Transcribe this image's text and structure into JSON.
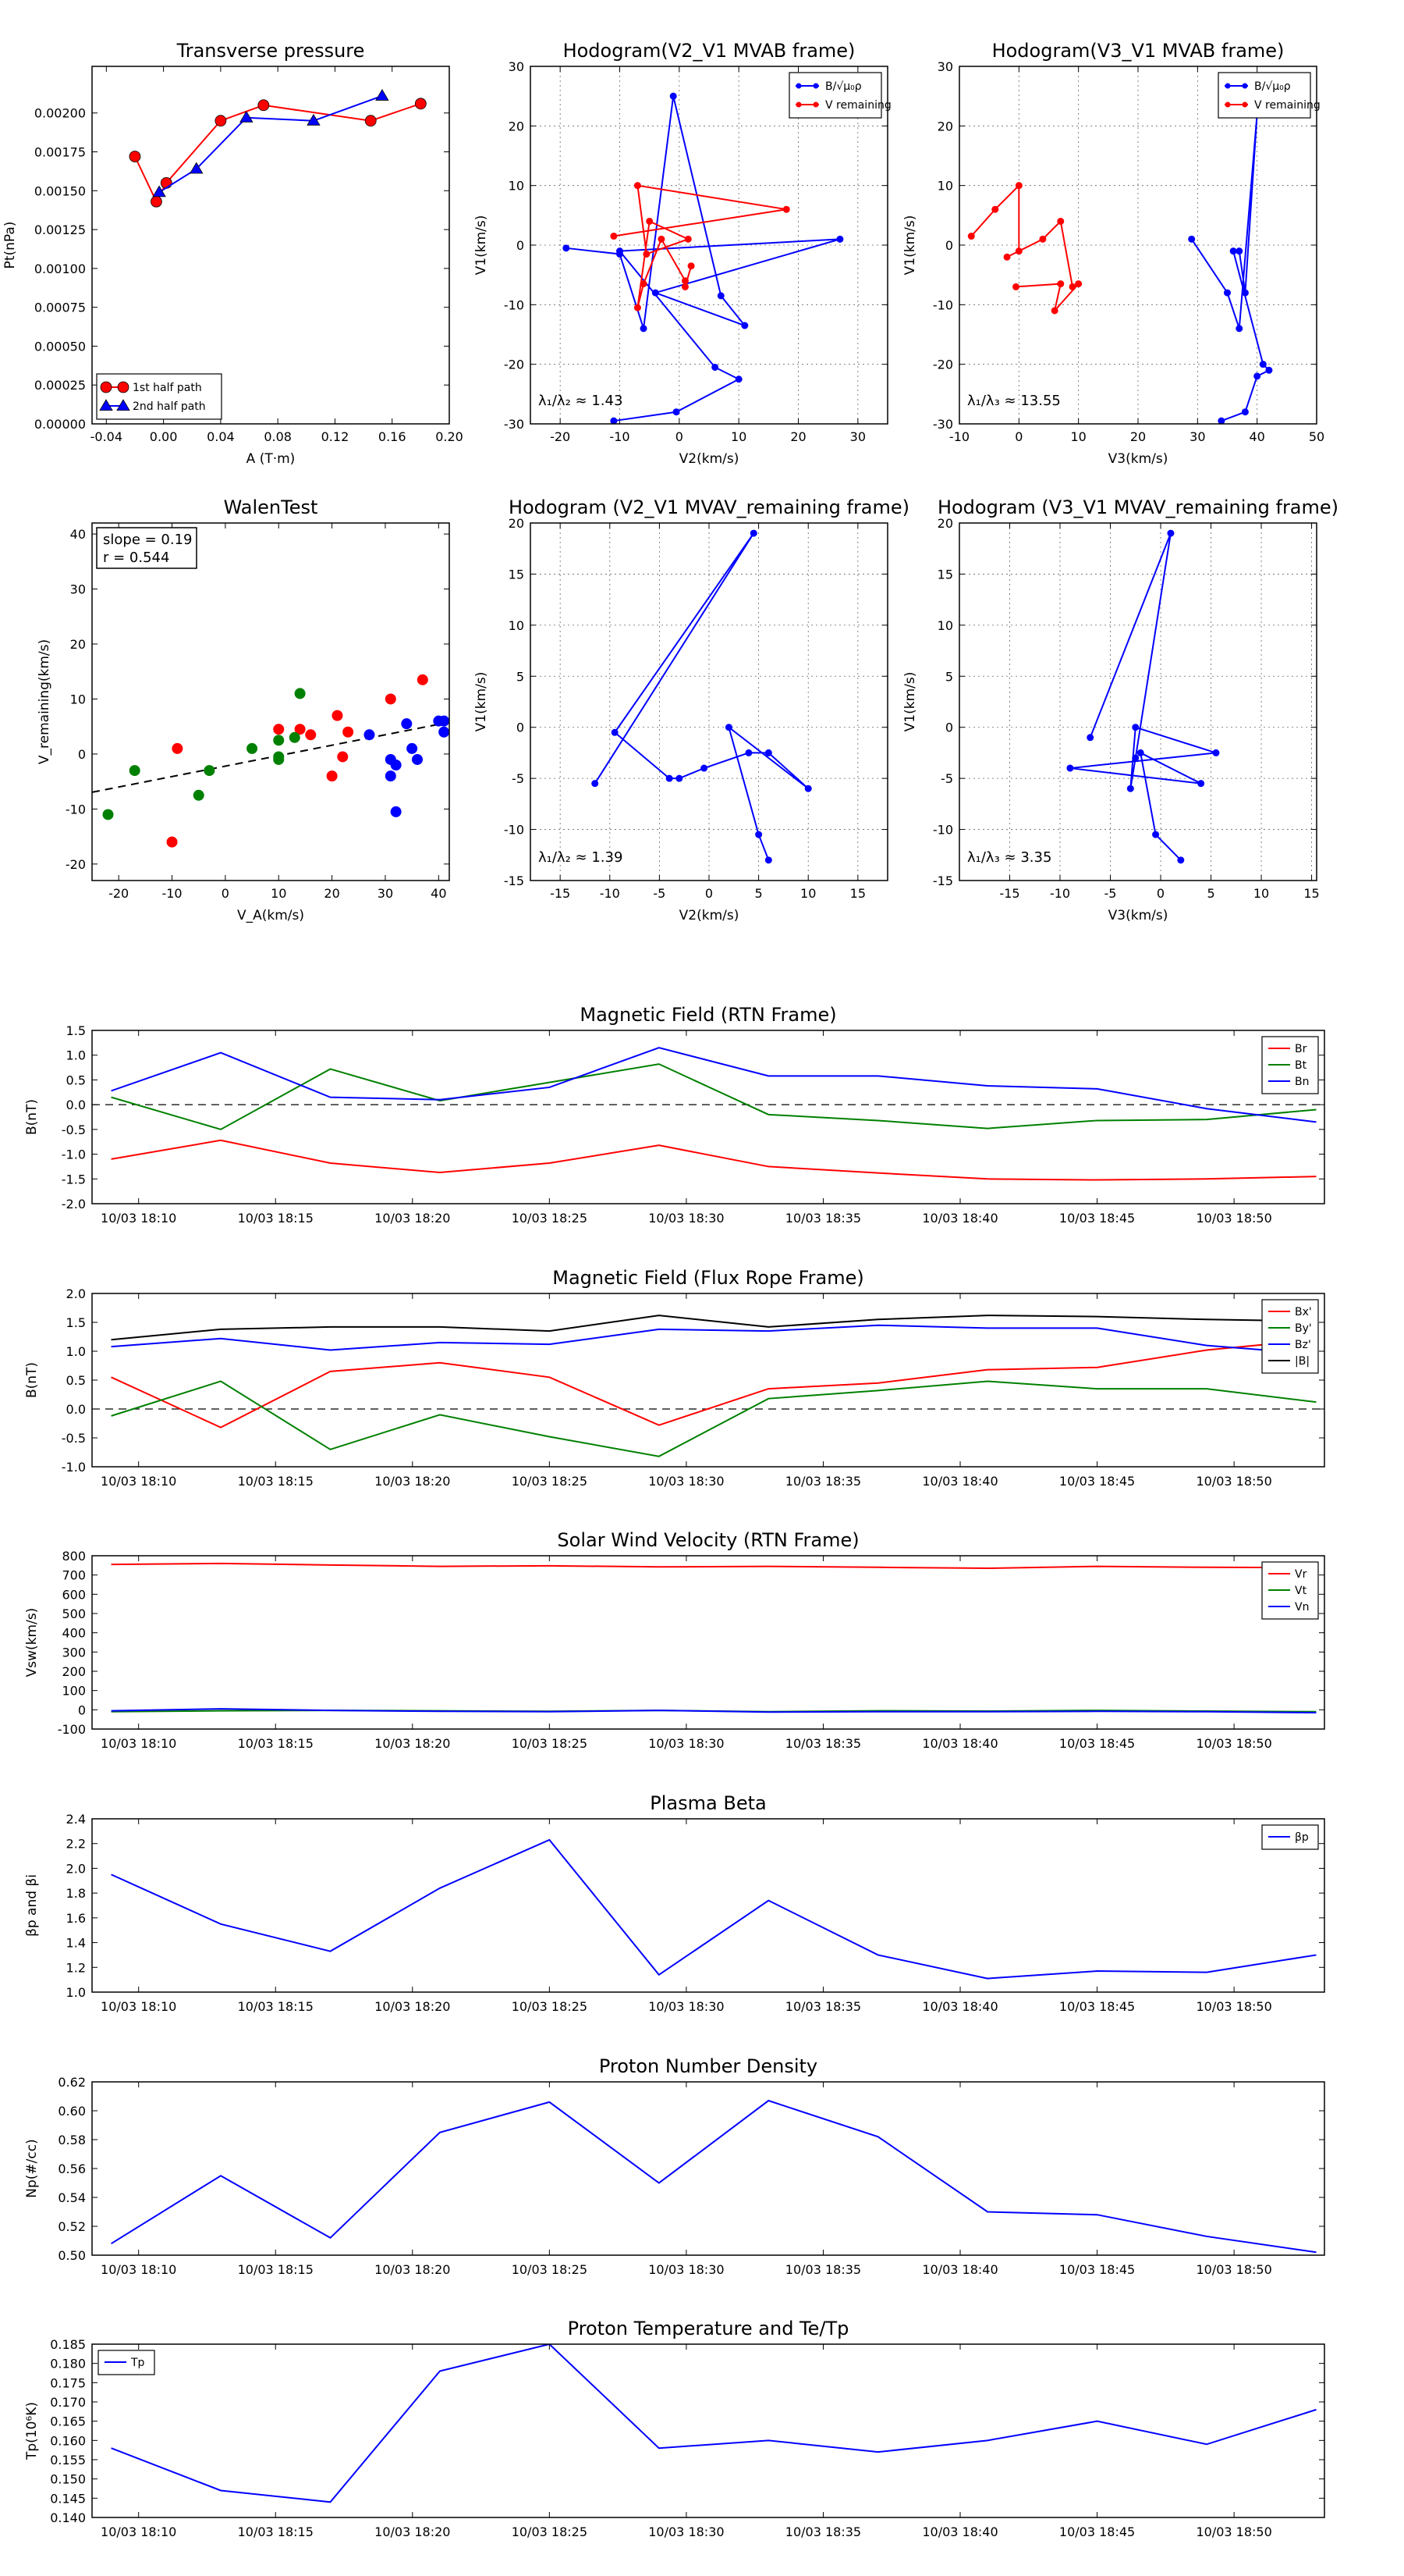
{
  "chart_data": [
    {
      "id": "tp",
      "type": "scatter",
      "title": "Transverse pressure",
      "xlabel": "A (T·m)",
      "ylabel": "Pt(nPa)",
      "xlim": [
        -0.05,
        0.2
      ],
      "ylim": [
        0,
        0.0023
      ],
      "xticks": [
        "-0.04",
        "0.00",
        "0.04",
        "0.08",
        "0.12",
        "0.16",
        "0.20"
      ],
      "yticks": [
        "0.00000",
        "0.00025",
        "0.00050",
        "0.00075",
        "0.00100",
        "0.00125",
        "0.00150",
        "0.00175",
        "0.00200"
      ],
      "series": [
        {
          "name": "1st half path",
          "color": "#ff0000",
          "marker": "circle",
          "x": [
            -0.02,
            -0.005,
            0.002,
            0.04,
            0.07,
            0.145,
            0.18
          ],
          "y": [
            0.00172,
            0.00143,
            0.00155,
            0.00195,
            0.00205,
            0.00195,
            0.00206
          ]
        },
        {
          "name": "2nd half path",
          "color": "#0000ff",
          "marker": "triangle",
          "x": [
            -0.003,
            0.023,
            0.058,
            0.105,
            0.153
          ],
          "y": [
            0.00149,
            0.00164,
            0.00197,
            0.00195,
            0.00211
          ]
        }
      ],
      "legend_position": "lower-left"
    },
    {
      "id": "h1",
      "type": "line",
      "title": "Hodogram(V2_V1 MVAB frame)",
      "xlabel": "V2(km/s)",
      "ylabel": "V1(km/s)",
      "xlim": [
        -25,
        35
      ],
      "ylim": [
        -30,
        30
      ],
      "xticks": [
        "-20",
        "-10",
        "0",
        "10",
        "20",
        "30"
      ],
      "yticks": [
        "-30",
        "-20",
        "-10",
        "0",
        "10",
        "20",
        "30"
      ],
      "annotation": "λ₁/λ₂ ≈ 1.43",
      "legend_position": "top-right",
      "series": [
        {
          "name": "B/√μ₀ρ",
          "color": "#0000ff",
          "x": [
            -19,
            -10,
            -6,
            -1,
            7,
            11,
            -4,
            27,
            -10,
            6,
            10,
            -0.5,
            -11
          ],
          "y": [
            -0.5,
            -1.5,
            -14,
            25,
            -8.5,
            -13.5,
            -8,
            1,
            -1,
            -20.5,
            -22.5,
            -28,
            -29.5
          ]
        },
        {
          "name": "V remaining",
          "color": "#ff0000",
          "x": [
            -11,
            18,
            -7,
            -5.5,
            1.5,
            -5,
            -7,
            -6,
            -3,
            1,
            1,
            2
          ],
          "y": [
            1.5,
            6,
            10,
            -1.5,
            1,
            4,
            -10.5,
            -6.5,
            1,
            -6,
            -7,
            -3.5
          ]
        }
      ]
    },
    {
      "id": "h2",
      "type": "line",
      "title": "Hodogram(V3_V1 MVAB frame)",
      "xlabel": "V3(km/s)",
      "ylabel": "V1(km/s)",
      "xlim": [
        -10,
        50
      ],
      "ylim": [
        -30,
        30
      ],
      "xticks": [
        "-10",
        "0",
        "10",
        "20",
        "30",
        "40",
        "50"
      ],
      "yticks": [
        "-30",
        "-20",
        "-10",
        "0",
        "10",
        "20",
        "30"
      ],
      "annotation": "λ₁/λ₃ ≈ 13.55",
      "legend_position": "top-right",
      "series": [
        {
          "name": "B/√μ₀ρ",
          "color": "#0000ff",
          "x": [
            29,
            35,
            37,
            40,
            38,
            37,
            36,
            41,
            42,
            40,
            38,
            34
          ],
          "y": [
            1,
            -8,
            -14,
            22,
            -8,
            -1,
            -1,
            -20,
            -21,
            -22,
            -28,
            -29.5
          ]
        },
        {
          "name": "V remaining",
          "color": "#ff0000",
          "x": [
            -8,
            -4,
            0,
            0,
            -2,
            4,
            7,
            9,
            10,
            6,
            7,
            -0.5
          ],
          "y": [
            1.5,
            6,
            10,
            -1,
            -2,
            1,
            4,
            -7,
            -6.5,
            -11,
            -6.5,
            -7
          ]
        }
      ]
    },
    {
      "id": "walen",
      "type": "scatter",
      "title": "WalenTest",
      "xlabel": "V_A(km/s)",
      "ylabel": "V_remaining(km/s)",
      "xlim": [
        -25,
        42
      ],
      "ylim": [
        -23,
        42
      ],
      "xticks": [
        "-20",
        "-10",
        "0",
        "10",
        "20",
        "30",
        "40"
      ],
      "yticks": [
        "-20",
        "-10",
        "0",
        "10",
        "20",
        "30",
        "40"
      ],
      "annotation_lines": [
        "slope = 0.19",
        "r = 0.544"
      ],
      "fit_line": {
        "slope": 0.19,
        "intercept": -2.2
      },
      "series": [
        {
          "color": "#ff0000",
          "x": [
            -10,
            -9,
            10,
            14,
            16,
            20,
            21,
            22,
            23,
            31,
            37
          ],
          "y": [
            -16,
            1,
            4.5,
            4.5,
            3.5,
            -4,
            7,
            -0.5,
            4,
            10,
            13.5
          ]
        },
        {
          "color": "#008000",
          "x": [
            -22,
            -17,
            -5,
            -3,
            5,
            10,
            10,
            10,
            13,
            14
          ],
          "y": [
            -11,
            -3,
            -7.5,
            -3,
            1,
            2.5,
            -0.5,
            -1,
            3,
            11
          ]
        },
        {
          "color": "#0000ff",
          "x": [
            27,
            31,
            31,
            32,
            32,
            34,
            35,
            36,
            40,
            41,
            41
          ],
          "y": [
            3.5,
            -1,
            -4,
            -10.5,
            -2,
            5.5,
            1,
            -1,
            6,
            6,
            4
          ]
        }
      ]
    },
    {
      "id": "h3",
      "type": "line",
      "title": "Hodogram (V2_V1 MVAV_remaining frame)",
      "xlabel": "V2(km/s)",
      "ylabel": "V1(km/s)",
      "xlim": [
        -18,
        18
      ],
      "ylim": [
        -15,
        20
      ],
      "xticks": [
        "-15",
        "-10",
        "-5",
        "0",
        "5",
        "10",
        "15"
      ],
      "yticks": [
        "-15",
        "-10",
        "-5",
        "0",
        "5",
        "10",
        "15",
        "20"
      ],
      "annotation": "λ₁/λ₂ ≈ 1.39",
      "series": [
        {
          "color": "#0000ff",
          "x": [
            -11.5,
            4.5,
            -9.5,
            -4,
            -3,
            -0.5,
            4,
            6,
            10,
            2,
            5,
            6
          ],
          "y": [
            -5.5,
            19,
            -0.5,
            -5,
            -5,
            -4,
            -2.5,
            -2.5,
            -6,
            0,
            -10.5,
            -13
          ]
        }
      ]
    },
    {
      "id": "h4",
      "type": "line",
      "title": "Hodogram (V3_V1 MVAV_remaining frame)",
      "xlabel": "V3(km/s)",
      "ylabel": "V1(km/s)",
      "xlim": [
        -20,
        15.5
      ],
      "ylim": [
        -15,
        20
      ],
      "xticks": [
        "-15",
        "-10",
        "-5",
        "0",
        "5",
        "10",
        "15"
      ],
      "yticks": [
        "-15",
        "-10",
        "-5",
        "0",
        "5",
        "10",
        "15",
        "20"
      ],
      "annotation": "λ₁/λ₃ ≈ 3.35",
      "series": [
        {
          "color": "#0000ff",
          "x": [
            -7,
            1,
            -2.5,
            -3,
            -2.5,
            5.5,
            -9,
            4,
            -2,
            -0.5,
            2
          ],
          "y": [
            -1,
            19,
            -3,
            -6,
            0,
            -2.5,
            -4,
            -5.5,
            -2.5,
            -10.5,
            -13
          ]
        }
      ]
    },
    {
      "id": "brtn",
      "type": "line",
      "title": "Magnetic Field (RTN Frame)",
      "ylabel": "B(nT)",
      "ylim": [
        -2.0,
        1.5
      ],
      "yticks": [
        "-2.0",
        "-1.5",
        "-1.0",
        "-0.5",
        "0.0",
        "0.5",
        "1.0",
        "1.5"
      ],
      "xticks": [
        "10/03 18:10",
        "10/03 18:15",
        "10/03 18:20",
        "10/03 18:25",
        "10/03 18:30",
        "10/03 18:35",
        "10/03 18:40",
        "10/03 18:45",
        "10/03 18:50"
      ],
      "x_minutes": [
        9,
        13,
        17,
        21,
        25,
        29,
        33,
        37,
        41,
        45,
        49,
        53
      ],
      "zero_line": true,
      "legend_position": "top-right",
      "series": [
        {
          "name": "Br",
          "color": "#ff0000",
          "values": [
            -1.1,
            -0.72,
            -1.18,
            -1.37,
            -1.18,
            -0.82,
            -1.25,
            -1.38,
            -1.5,
            -1.52,
            -1.5,
            -1.45
          ]
        },
        {
          "name": "Bt",
          "color": "#008000",
          "values": [
            0.15,
            -0.5,
            0.72,
            0.08,
            0.45,
            0.82,
            -0.2,
            -0.32,
            -0.48,
            -0.32,
            -0.3,
            -0.1
          ]
        },
        {
          "name": "Bn",
          "color": "#0000ff",
          "values": [
            0.28,
            1.05,
            0.15,
            0.1,
            0.35,
            1.15,
            0.58,
            0.58,
            0.38,
            0.32,
            -0.08,
            -0.35
          ]
        }
      ]
    },
    {
      "id": "bfr",
      "type": "line",
      "title": "Magnetic Field (Flux Rope Frame)",
      "ylabel": "B(nT)",
      "ylim": [
        -1.0,
        2.0
      ],
      "yticks": [
        "-1.0",
        "-0.5",
        "0.0",
        "0.5",
        "1.0",
        "1.5",
        "2.0"
      ],
      "xticks": [
        "10/03 18:10",
        "10/03 18:15",
        "10/03 18:20",
        "10/03 18:25",
        "10/03 18:30",
        "10/03 18:35",
        "10/03 18:40",
        "10/03 18:45",
        "10/03 18:50"
      ],
      "x_minutes": [
        9,
        13,
        17,
        21,
        25,
        29,
        33,
        37,
        41,
        45,
        49,
        53
      ],
      "zero_line": true,
      "legend_position": "top-right",
      "series": [
        {
          "name": "Bx'",
          "color": "#ff0000",
          "values": [
            0.55,
            -0.32,
            0.65,
            0.8,
            0.55,
            -0.28,
            0.35,
            0.45,
            0.68,
            0.72,
            1.02,
            1.2
          ]
        },
        {
          "name": "By'",
          "color": "#008000",
          "values": [
            -0.12,
            0.48,
            -0.7,
            -0.1,
            -0.48,
            -0.82,
            0.18,
            0.32,
            0.48,
            0.35,
            0.35,
            0.12
          ]
        },
        {
          "name": "Bz'",
          "color": "#0000ff",
          "values": [
            1.08,
            1.22,
            1.02,
            1.15,
            1.12,
            1.38,
            1.35,
            1.45,
            1.4,
            1.4,
            1.1,
            0.95
          ]
        },
        {
          "name": "|B|",
          "color": "#000000",
          "values": [
            1.2,
            1.38,
            1.42,
            1.42,
            1.35,
            1.62,
            1.42,
            1.55,
            1.62,
            1.6,
            1.55,
            1.52
          ]
        }
      ]
    },
    {
      "id": "vsw",
      "type": "line",
      "title": "Solar Wind Velocity (RTN Frame)",
      "ylabel": "Vsw(km/s)",
      "ylim": [
        -100,
        800
      ],
      "yticks": [
        "-100",
        "0",
        "100",
        "200",
        "300",
        "400",
        "500",
        "600",
        "700",
        "800"
      ],
      "xticks": [
        "10/03 18:10",
        "10/03 18:15",
        "10/03 18:20",
        "10/03 18:25",
        "10/03 18:30",
        "10/03 18:35",
        "10/03 18:40",
        "10/03 18:45",
        "10/03 18:50"
      ],
      "x_minutes": [
        9,
        13,
        17,
        21,
        25,
        29,
        33,
        37,
        41,
        45,
        49,
        53
      ],
      "legend_position": "top-right",
      "series": [
        {
          "name": "Vr",
          "color": "#ff0000",
          "values": [
            755,
            760,
            752,
            745,
            748,
            742,
            745,
            740,
            735,
            745,
            740,
            738
          ]
        },
        {
          "name": "Vt",
          "color": "#008000",
          "values": [
            -10,
            -5,
            -3,
            -5,
            -8,
            -3,
            -10,
            -5,
            -7,
            -3,
            -7,
            -10
          ]
        },
        {
          "name": "Vn",
          "color": "#0000ff",
          "values": [
            -5,
            5,
            -3,
            -8,
            -10,
            -3,
            -12,
            -10,
            -10,
            -8,
            -10,
            -15
          ]
        }
      ]
    },
    {
      "id": "beta",
      "type": "line",
      "title": "Plasma Beta",
      "ylabel": "βp and βi",
      "ylim": [
        1.0,
        2.4
      ],
      "yticks": [
        "1.0",
        "1.2",
        "1.4",
        "1.6",
        "1.8",
        "2.0",
        "2.2",
        "2.4"
      ],
      "xticks": [
        "10/03 18:10",
        "10/03 18:15",
        "10/03 18:20",
        "10/03 18:25",
        "10/03 18:30",
        "10/03 18:35",
        "10/03 18:40",
        "10/03 18:45",
        "10/03 18:50"
      ],
      "x_minutes": [
        9,
        13,
        17,
        21,
        25,
        29,
        33,
        37,
        41,
        45,
        49,
        53
      ],
      "legend_position": "top-right",
      "series": [
        {
          "name": "βp",
          "color": "#0000ff",
          "values": [
            1.95,
            1.55,
            1.33,
            1.84,
            2.23,
            1.14,
            1.74,
            1.3,
            1.11,
            1.17,
            1.16,
            1.3
          ]
        }
      ]
    },
    {
      "id": "np",
      "type": "line",
      "title": "Proton Number Density",
      "ylabel": "Np(#/cc)",
      "ylim": [
        0.5,
        0.62
      ],
      "yticks": [
        "0.50",
        "0.52",
        "0.54",
        "0.56",
        "0.58",
        "0.60",
        "0.62"
      ],
      "xticks": [
        "10/03 18:10",
        "10/03 18:15",
        "10/03 18:20",
        "10/03 18:25",
        "10/03 18:30",
        "10/03 18:35",
        "10/03 18:40",
        "10/03 18:45",
        "10/03 18:50"
      ],
      "x_minutes": [
        9,
        13,
        17,
        21,
        25,
        29,
        33,
        37,
        41,
        45,
        49,
        53
      ],
      "series": [
        {
          "color": "#0000ff",
          "values": [
            0.508,
            0.555,
            0.512,
            0.585,
            0.606,
            0.55,
            0.607,
            0.582,
            0.53,
            0.528,
            0.513,
            0.502
          ]
        }
      ]
    },
    {
      "id": "tpr",
      "type": "line",
      "title": "Proton Temperature and Te/Tp",
      "ylabel": "Tp(10⁶K)",
      "ylim": [
        0.14,
        0.185
      ],
      "yticks": [
        "0.140",
        "0.145",
        "0.150",
        "0.155",
        "0.160",
        "0.165",
        "0.170",
        "0.175",
        "0.180",
        "0.185"
      ],
      "xticks": [
        "10/03 18:10",
        "10/03 18:15",
        "10/03 18:20",
        "10/03 18:25",
        "10/03 18:30",
        "10/03 18:35",
        "10/03 18:40",
        "10/03 18:45",
        "10/03 18:50"
      ],
      "x_minutes": [
        9,
        13,
        17,
        21,
        25,
        29,
        33,
        37,
        41,
        45,
        49,
        53
      ],
      "legend_position": "top-left",
      "series": [
        {
          "name": "Tp",
          "color": "#0000ff",
          "values": [
            0.158,
            0.147,
            0.144,
            0.178,
            0.185,
            0.158,
            0.16,
            0.157,
            0.16,
            0.165,
            0.159,
            0.168
          ]
        }
      ]
    }
  ]
}
